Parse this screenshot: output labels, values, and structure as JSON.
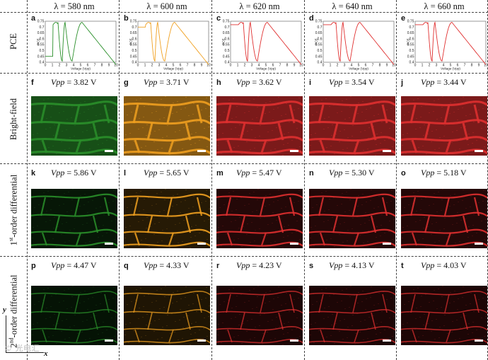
{
  "columns": [
    {
      "wavelength": "λ = 580 nm",
      "color": "#2a8f2a"
    },
    {
      "wavelength": "λ = 600 nm",
      "color": "#f0a020"
    },
    {
      "wavelength": "λ = 620 nm",
      "color": "#e03030"
    },
    {
      "wavelength": "λ = 640 nm",
      "color": "#e03030"
    },
    {
      "wavelength": "λ = 660 nm",
      "color": "#e03030"
    }
  ],
  "rows": [
    {
      "label": "PCE"
    },
    {
      "label": "Bright-field"
    },
    {
      "label_prefix": "1",
      "label_sup": "st",
      "label_suffix": "-order differential"
    },
    {
      "label_prefix": "2",
      "label_sup": "nd",
      "label_suffix": "-order differential"
    }
  ],
  "pce_axes": {
    "ylabel": "PCE",
    "xlabel": "Voltage (Vpp)",
    "yticks": [
      "0.4",
      "0.45",
      "0.5",
      "0.55",
      "0.6",
      "0.65",
      "0.7",
      "0.75"
    ],
    "xticks": [
      "0",
      "1",
      "2",
      "3",
      "4",
      "5",
      "6",
      "7",
      "8",
      "9",
      "10"
    ]
  },
  "pce_panels": [
    "a",
    "b",
    "c",
    "d",
    "e"
  ],
  "bright_field": [
    {
      "letter": "f",
      "vpp": "= 3.82 V"
    },
    {
      "letter": "g",
      "vpp": "= 3.71 V"
    },
    {
      "letter": "h",
      "vpp": "=  3.62 V"
    },
    {
      "letter": "i",
      "vpp": "= 3.54 V"
    },
    {
      "letter": "j",
      "vpp": "= 3.44 V"
    }
  ],
  "first_order": [
    {
      "letter": "k",
      "vpp": "= 5.86 V"
    },
    {
      "letter": "l",
      "vpp": "= 5.65 V"
    },
    {
      "letter": "m",
      "vpp": "= 5.47 V"
    },
    {
      "letter": "n",
      "vpp": "= 5.30 V"
    },
    {
      "letter": "o",
      "vpp": "=  5.18 V"
    }
  ],
  "second_order": [
    {
      "letter": "p",
      "vpp": "= 4.47 V"
    },
    {
      "letter": "q",
      "vpp": "= 4.33 V"
    },
    {
      "letter": "r",
      "vpp": "= 4.23 V"
    },
    {
      "letter": "s",
      "vpp": "= 4.13 V"
    },
    {
      "letter": "t",
      "vpp": "= 4.03 V"
    }
  ],
  "vpp_symbol": "Vpp",
  "corner_axes": {
    "y": "y",
    "x": "x"
  },
  "watermark": "© 光电汇"
}
